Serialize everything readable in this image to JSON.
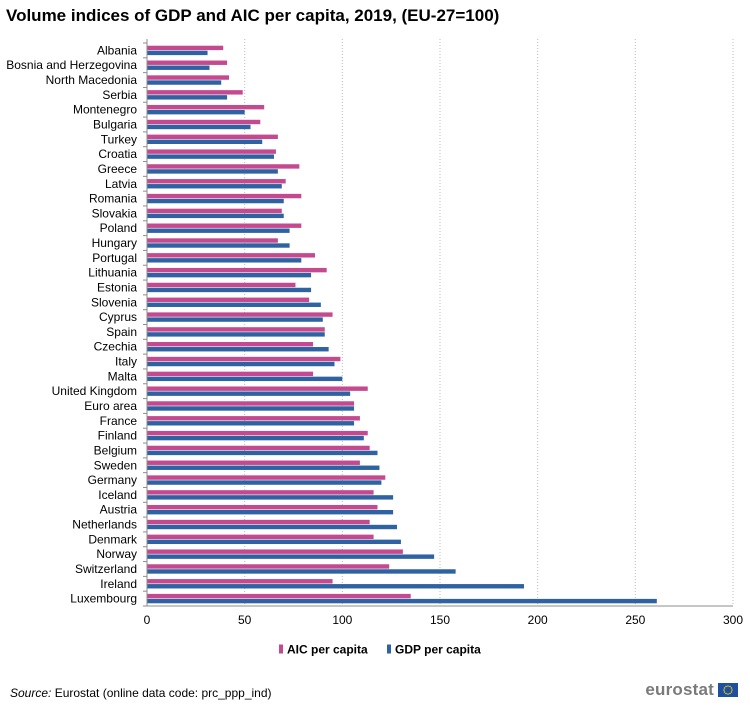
{
  "title": "Volume indices of GDP and AIC per capita, 2019, (EU-27=100)",
  "source": {
    "label": "Source:",
    "text": "Eurostat (online data code: prc_ppp_ind)"
  },
  "logo": {
    "text": "eurostat",
    "icon": "eu-flag-icon"
  },
  "colors": {
    "aic": "#c4498f",
    "gdp": "#2f62a3",
    "grid": "#bdbdbd",
    "axis": "#8c8c8c"
  },
  "chart_data": {
    "type": "bar",
    "orientation": "horizontal",
    "categories": [
      "Albania",
      "Bosnia and Herzegovina",
      "North Macedonia",
      "Serbia",
      "Montenegro",
      "Bulgaria",
      "Turkey",
      "Croatia",
      "Greece",
      "Latvia",
      "Romania",
      "Slovakia",
      "Poland",
      "Hungary",
      "Portugal",
      "Lithuania",
      "Estonia",
      "Slovenia",
      "Cyprus",
      "Spain",
      "Czechia",
      "Italy",
      "Malta",
      "United Kingdom",
      "Euro area",
      "France",
      "Finland",
      "Belgium",
      "Sweden",
      "Germany",
      "Iceland",
      "Austria",
      "Netherlands",
      "Denmark",
      "Norway",
      "Switzerland",
      "Ireland",
      "Luxembourg"
    ],
    "series": [
      {
        "name": "AIC per capita",
        "color": "#c4498f",
        "values": [
          39,
          41,
          42,
          49,
          60,
          58,
          67,
          66,
          78,
          71,
          79,
          69,
          79,
          67,
          86,
          92,
          76,
          83,
          95,
          91,
          85,
          99,
          85,
          113,
          106,
          109,
          113,
          114,
          109,
          122,
          116,
          118,
          114,
          116,
          131,
          124,
          95,
          135
        ]
      },
      {
        "name": "GDP per capita",
        "color": "#2f62a3",
        "values": [
          31,
          32,
          38,
          41,
          50,
          53,
          59,
          65,
          67,
          69,
          70,
          70,
          73,
          73,
          79,
          84,
          84,
          89,
          90,
          91,
          93,
          96,
          100,
          104,
          106,
          106,
          111,
          118,
          119,
          120,
          126,
          126,
          128,
          130,
          147,
          158,
          193,
          261
        ]
      }
    ],
    "xlim": [
      0,
      300
    ],
    "xticks": [
      0,
      50,
      100,
      150,
      200,
      250,
      300
    ],
    "grid": true,
    "legend_position": "bottom-center"
  }
}
